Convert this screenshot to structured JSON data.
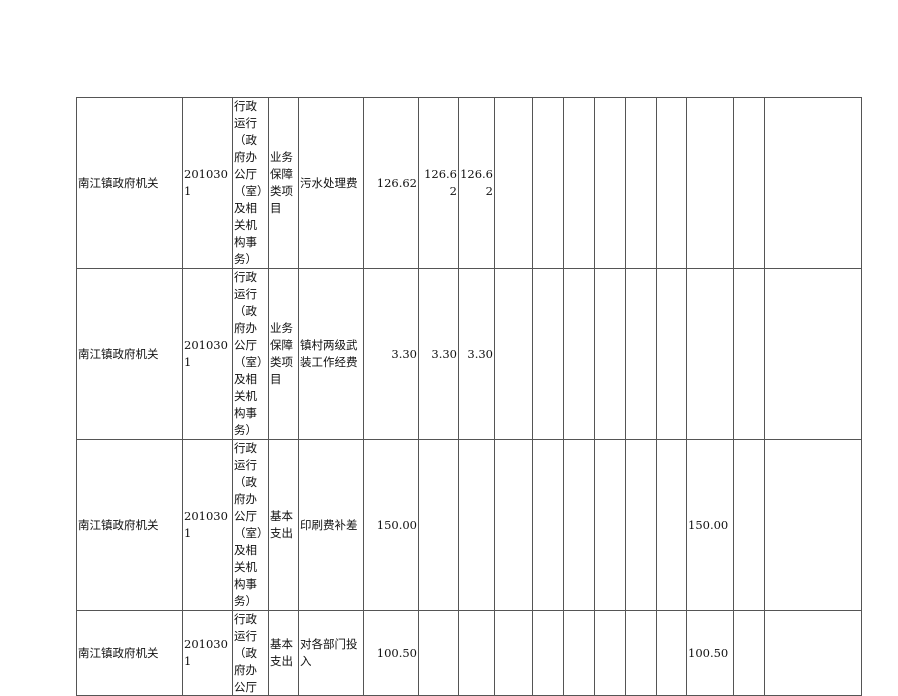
{
  "rows": [
    {
      "unit": "南江镇政府机关",
      "code": "2010301",
      "func": "行政运行（政府办公厅（室）及相关机构事务）",
      "type": "业务保障类项目",
      "item": "污水处理费",
      "c6": "126.62",
      "c7": "126.62",
      "c8": "126.62",
      "c15": ""
    },
    {
      "unit": "南江镇政府机关",
      "code": "2010301",
      "func": "行政运行（政府办公厅（室）及相关机构事务）",
      "type": "业务保障类项目",
      "item": "镇村两级武装工作经费",
      "c6": "3.30",
      "c7": "3.30",
      "c8": "3.30",
      "c15": ""
    },
    {
      "unit": "南江镇政府机关",
      "code": "2010301",
      "func": "行政运行（政府办公厅（室）及相关机构事务）",
      "type": "基本支出",
      "item": "印刷费补差",
      "c6": "150.00",
      "c7": "",
      "c8": "",
      "c15": "150.00"
    },
    {
      "unit": "南江镇政府机关",
      "code": "2010301",
      "func": "行政运行（政府办公厅（室）及相关",
      "type": "基本支出",
      "item": "对各部门投入",
      "c6": "100.50",
      "c7": "",
      "c8": "",
      "c15": "100.50"
    }
  ]
}
